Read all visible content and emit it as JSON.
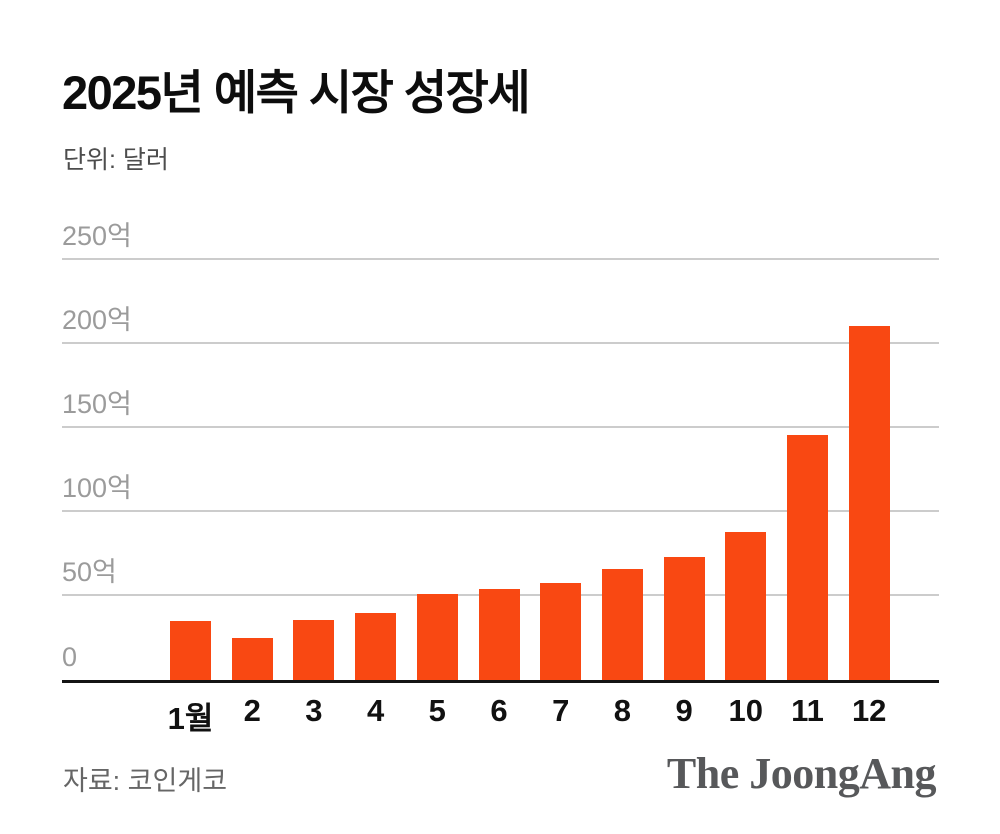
{
  "header": {
    "title": "2025년 예측 시장 성장세",
    "unit_label": "단위: 달러"
  },
  "footer": {
    "source": "자료: 코인게코",
    "brand": "The JoongAng"
  },
  "chart_data": {
    "type": "bar",
    "title": "2025년 예측 시장 성장세",
    "subtitle": "단위: 달러",
    "categories": [
      "1월",
      "2",
      "3",
      "4",
      "5",
      "6",
      "7",
      "8",
      "9",
      "10",
      "11",
      "12"
    ],
    "values": [
      35,
      25,
      36,
      40,
      51,
      54,
      58,
      66,
      73,
      88,
      146,
      211
    ],
    "unit": "억 달러",
    "xlabel": "월",
    "ylabel": "",
    "ylim": [
      0,
      250
    ],
    "y_ticks": [
      {
        "value": 0,
        "label": "0"
      },
      {
        "value": 50,
        "label": "50억"
      },
      {
        "value": 100,
        "label": "100억"
      },
      {
        "value": 150,
        "label": "150억"
      },
      {
        "value": 200,
        "label": "200억"
      },
      {
        "value": 250,
        "label": "250억"
      }
    ],
    "grid": true,
    "legend": false,
    "bar_color": "#F94812",
    "gridline_color": "#cccccc",
    "axis_color": "#141414",
    "tick_label_color": "#9b9b9b"
  }
}
